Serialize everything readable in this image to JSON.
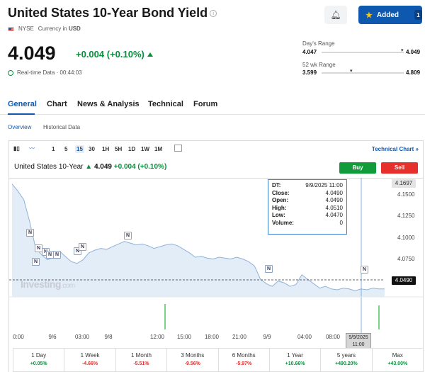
{
  "header": {
    "title": "United States 10-Year Bond Yield",
    "exchange": "NYSE",
    "currency_label": "Currency in",
    "currency": "USD",
    "added_label": "Added",
    "added_count": "1"
  },
  "quote": {
    "price": "4.049",
    "change": "+0.004 (+0.10%)",
    "realtime": "Real-time Data · 00:44:03"
  },
  "ranges": {
    "days_label": "Day's Range",
    "days_low": "4.047",
    "days_high": "4.049",
    "wk52_label": "52 wk Range",
    "wk52_low": "3.599",
    "wk52_high": "4.809"
  },
  "tabs": [
    "General",
    "Chart",
    "News & Analysis",
    "Technical",
    "Forum"
  ],
  "subtabs": [
    "Overview",
    "Historical Data"
  ],
  "toolbar": {
    "timeframes": [
      "1",
      "5",
      "15",
      "30",
      "1H",
      "5H",
      "1D",
      "1W",
      "1M"
    ],
    "selected": "15",
    "technical_chart": "Technical Chart »"
  },
  "chart_header": {
    "name": "United States 10-Year",
    "price": "4.049",
    "change": "+0.004",
    "pct": "(+0.10%)",
    "buy": "Buy",
    "sell": "Sell"
  },
  "tooltip": {
    "dt_label": "DT:",
    "dt": "9/9/2025 11:00",
    "close_label": "Close:",
    "close": "4.0490",
    "open_label": "Open:",
    "open": "4.0490",
    "high_label": "High:",
    "high": "4.0510",
    "low_label": "Low:",
    "low": "4.0470",
    "volume_label": "Volume:",
    "volume": "0"
  },
  "watermark": {
    "main": "Investing",
    "suffix": ".com"
  },
  "chart_data": {
    "type": "area",
    "yticks": [
      "4.1500",
      "4.1250",
      "4.1000",
      "4.0750"
    ],
    "ymax_label": "4.1697",
    "current_label": "4.0490",
    "ylim": [
      4.04,
      4.175
    ],
    "xticks": [
      "0:00",
      "9/6",
      "03:00",
      "9/8",
      "12:00",
      "15:00",
      "18:00",
      "21:00",
      "9/9",
      "04:00",
      "08:00"
    ],
    "crosshair_label": "9/9/2025 11:00",
    "values": [
      4.168,
      4.16,
      4.15,
      4.125,
      4.095,
      4.088,
      4.082,
      4.085,
      4.092,
      4.086,
      4.08,
      4.078,
      4.082,
      4.09,
      4.093,
      4.095,
      4.094,
      4.097,
      4.1,
      4.103,
      4.101,
      4.099,
      4.1,
      4.098,
      4.095,
      4.097,
      4.099,
      4.1,
      4.098,
      4.094,
      4.09,
      4.085,
      4.086,
      4.084,
      4.083,
      4.085,
      4.084,
      4.083,
      4.085,
      4.083,
      4.08,
      4.075,
      4.06,
      4.055,
      4.052,
      4.058,
      4.056,
      4.052,
      4.054,
      4.065,
      4.06,
      4.055,
      4.05,
      4.052,
      4.049,
      4.048,
      4.05,
      4.049,
      4.047,
      4.049,
      4.048,
      4.05,
      4.049,
      4.049
    ]
  },
  "performance": [
    {
      "label": "1 Day",
      "value": "+0.05%",
      "dir": "pos"
    },
    {
      "label": "1 Week",
      "value": "-4.66%",
      "dir": "neg"
    },
    {
      "label": "1 Month",
      "value": "-5.51%",
      "dir": "neg"
    },
    {
      "label": "3 Months",
      "value": "-9.56%",
      "dir": "neg"
    },
    {
      "label": "6 Months",
      "value": "-5.97%",
      "dir": "neg"
    },
    {
      "label": "1 Year",
      "value": "+10.66%",
      "dir": "pos"
    },
    {
      "label": "5 years",
      "value": "+490.20%",
      "dir": "pos"
    },
    {
      "label": "Max",
      "value": "+43.00%",
      "dir": "pos"
    }
  ],
  "colors": {
    "accent": "#0e58b0",
    "up": "#0a8f3c",
    "down": "#d9302c"
  }
}
